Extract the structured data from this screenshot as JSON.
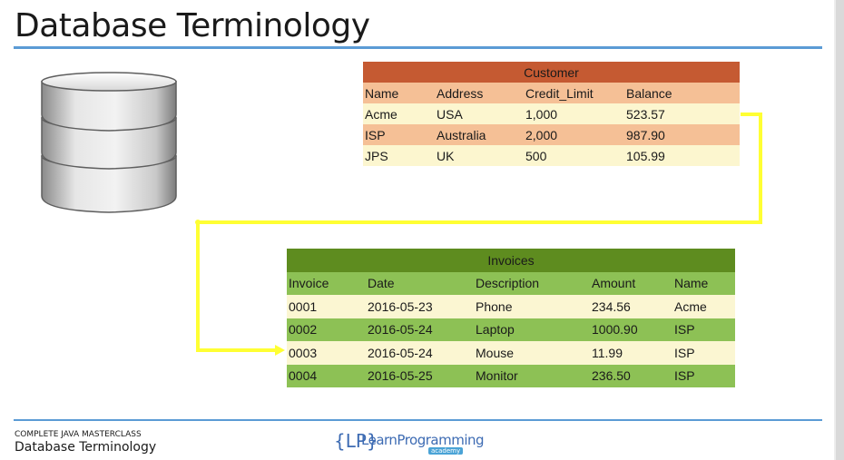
{
  "slide": {
    "title": "Database Terminology"
  },
  "icons": {
    "database": "database-icon",
    "connector": "arrow-connector-icon"
  },
  "customer_table": {
    "caption": "Customer",
    "headers": [
      "Name",
      "Address",
      "Credit_Limit",
      "Balance"
    ],
    "rows": [
      [
        "Acme",
        "USA",
        "1,000",
        "523.57"
      ],
      [
        "ISP",
        "Australia",
        "2,000",
        "987.90"
      ],
      [
        "JPS",
        "UK",
        "500",
        "105.99"
      ]
    ]
  },
  "invoices_table": {
    "caption": "Invoices",
    "headers": [
      "Invoice",
      "Date",
      "Description",
      "Amount",
      "Name"
    ],
    "rows": [
      [
        "0001",
        "2016-05-23",
        "Phone",
        "234.56",
        "Acme"
      ],
      [
        "0002",
        "2016-05-24",
        "Laptop",
        "1000.90",
        "ISP"
      ],
      [
        "0003",
        "2016-05-24",
        "Mouse",
        "11.99",
        "ISP"
      ],
      [
        "0004",
        "2016-05-25",
        "Monitor",
        "236.50",
        "ISP"
      ]
    ]
  },
  "footer": {
    "course": "COMPLETE JAVA MASTERCLASS",
    "title": "Database Terminology",
    "logo_mark": "{LP}",
    "logo_word": "LearnProgramming",
    "logo_sub": "academy"
  },
  "colors": {
    "accent_rule": "#5b9bd5",
    "customer_caption": "#c55a32",
    "customer_header": "#f5c096",
    "invoices_caption": "#5e8c1f",
    "invoices_header": "#8dc155",
    "row_light": "#fcf6cf",
    "connector": "#ffff33"
  }
}
